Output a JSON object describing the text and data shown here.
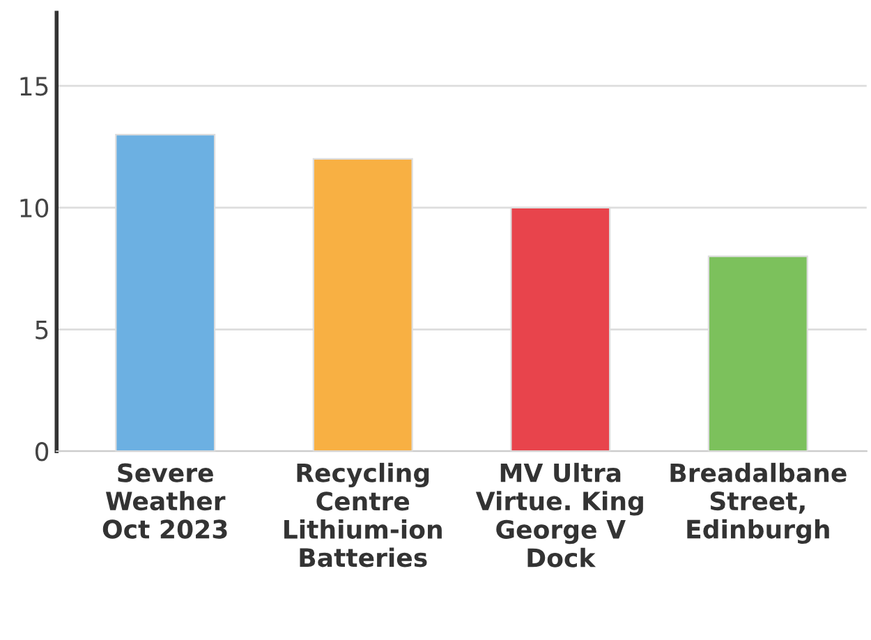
{
  "chart_data": {
    "type": "bar",
    "categories": [
      "Severe\nWeather\nOct 2023",
      "Recycling\nCentre\nLithium-ion\nBatteries",
      "MV Ultra\nVirtue. King\nGeorge V\nDock",
      "Breadalbane\nStreet,\nEdinburgh"
    ],
    "values": [
      13,
      12,
      10,
      8
    ],
    "colors": [
      "#6cb0e2",
      "#f8b043",
      "#e8444c",
      "#7cc15c"
    ],
    "ylim": [
      0,
      18
    ],
    "yticks": [
      0,
      5,
      10,
      15
    ],
    "grid": "y"
  }
}
